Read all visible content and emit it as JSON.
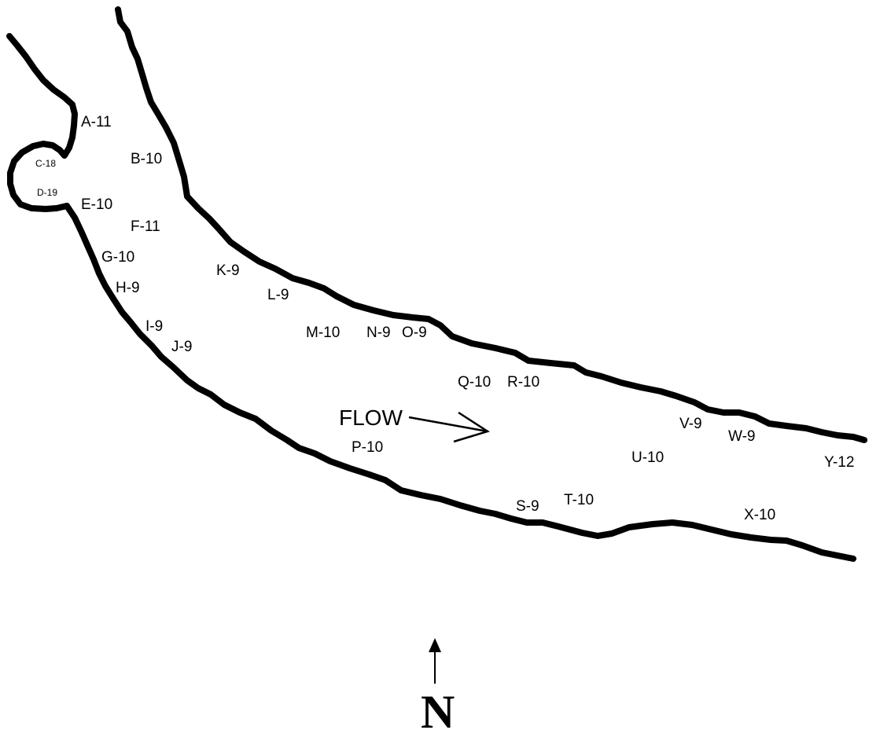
{
  "colors": {
    "bank": "#000000",
    "background": "#ffffff"
  },
  "flow_label": "FLOW",
  "north_label": "N",
  "stations": [
    {
      "id": "A",
      "text": "A-11"
    },
    {
      "id": "B",
      "text": "B-10"
    },
    {
      "id": "C",
      "text": "C-18"
    },
    {
      "id": "D",
      "text": "D-19"
    },
    {
      "id": "E",
      "text": "E-10"
    },
    {
      "id": "F",
      "text": "F-11"
    },
    {
      "id": "G",
      "text": "G-10"
    },
    {
      "id": "H",
      "text": "H-9"
    },
    {
      "id": "I",
      "text": "I-9"
    },
    {
      "id": "J",
      "text": "J-9"
    },
    {
      "id": "K",
      "text": "K-9"
    },
    {
      "id": "L",
      "text": "L-9"
    },
    {
      "id": "M",
      "text": "M-10"
    },
    {
      "id": "N",
      "text": "N-9"
    },
    {
      "id": "O",
      "text": "O-9"
    },
    {
      "id": "P",
      "text": "P-10"
    },
    {
      "id": "Q",
      "text": "Q-10"
    },
    {
      "id": "R",
      "text": "R-10"
    },
    {
      "id": "S",
      "text": "S-9"
    },
    {
      "id": "T",
      "text": "T-10"
    },
    {
      "id": "U",
      "text": "U-10"
    },
    {
      "id": "V",
      "text": "V-9"
    },
    {
      "id": "W",
      "text": "W-9"
    },
    {
      "id": "X",
      "text": "X-10"
    },
    {
      "id": "Y",
      "text": "Y-12"
    }
  ]
}
